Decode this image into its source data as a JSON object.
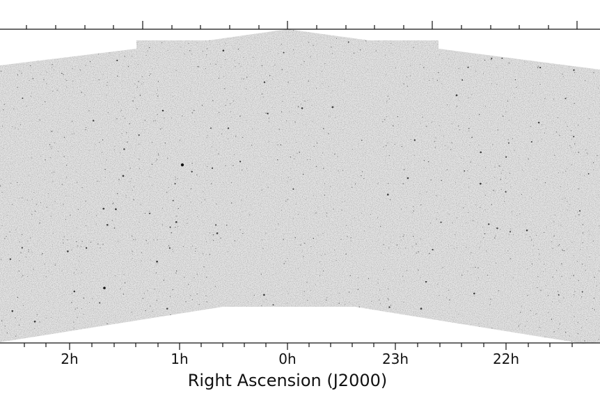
{
  "figure": {
    "xlabel": "Right Ascension (J2000)",
    "bottom_tick_labels": [
      "2h",
      "1h",
      "0h",
      "23h",
      "22h"
    ],
    "colors": {
      "background": "#ffffff",
      "sky": "#e2e2e2",
      "axis": "#111111",
      "stars": "#222222"
    }
  }
}
